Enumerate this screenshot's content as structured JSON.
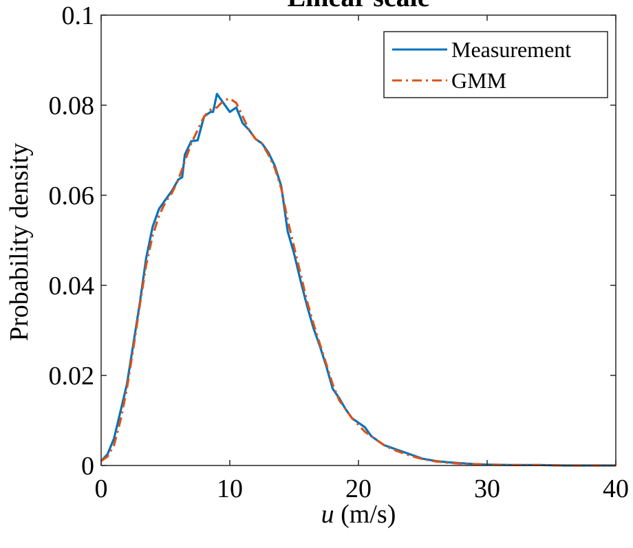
{
  "chart_data": {
    "type": "line",
    "title": "Linear scale",
    "xlabel_var": "u",
    "xlabel_unit": "(m/s)",
    "ylabel": "Probability density",
    "xlim": [
      0,
      40
    ],
    "ylim": [
      0,
      0.1
    ],
    "xticks": [
      0,
      10,
      20,
      30,
      40
    ],
    "yticks": [
      0,
      0.02,
      0.04,
      0.06,
      0.08,
      0.1
    ],
    "xtick_labels": [
      "0",
      "10",
      "20",
      "30",
      "40"
    ],
    "ytick_labels": [
      "0",
      "0.02",
      "0.04",
      "0.06",
      "0.08",
      "0.1"
    ],
    "grid": false,
    "legend_position": "top-right",
    "series": [
      {
        "name": "Measurement",
        "color": "#0072BD",
        "style": "solid",
        "x": [
          0,
          0.5,
          1,
          1.5,
          2,
          2.5,
          3,
          3.5,
          4,
          4.5,
          5,
          5.5,
          6,
          6.3,
          6.5,
          7,
          7.5,
          8,
          8.5,
          8.7,
          9,
          9.5,
          10,
          10.5,
          11,
          11.5,
          12,
          12.5,
          13,
          13.5,
          14,
          14.5,
          15,
          15.5,
          16,
          16.5,
          17,
          17.5,
          18,
          18.5,
          19,
          19.5,
          20,
          20.5,
          21,
          21.5,
          22,
          22.5,
          23,
          23.5,
          24,
          25,
          26,
          27,
          28,
          29,
          30,
          32,
          34,
          36,
          38,
          40
        ],
        "y": [
          0.001,
          0.0025,
          0.006,
          0.012,
          0.018,
          0.027,
          0.036,
          0.046,
          0.053,
          0.057,
          0.059,
          0.061,
          0.0635,
          0.064,
          0.069,
          0.072,
          0.0722,
          0.0775,
          0.0785,
          0.0785,
          0.0825,
          0.0805,
          0.0785,
          0.0795,
          0.076,
          0.0745,
          0.0725,
          0.0715,
          0.0695,
          0.0665,
          0.062,
          0.052,
          0.047,
          0.041,
          0.0355,
          0.0305,
          0.0265,
          0.022,
          0.017,
          0.015,
          0.0125,
          0.0105,
          0.0095,
          0.0085,
          0.0065,
          0.0055,
          0.0045,
          0.004,
          0.0035,
          0.003,
          0.0025,
          0.0015,
          0.001,
          0.0007,
          0.0005,
          0.0003,
          0.0002,
          0.0001,
          0.0001,
          0,
          0,
          0
        ]
      },
      {
        "name": "GMM",
        "color": "#D95319",
        "style": "dash-dot",
        "x": [
          0,
          0.5,
          1,
          1.5,
          2,
          2.5,
          3,
          3.5,
          4,
          4.5,
          5,
          5.5,
          6,
          6.5,
          7,
          7.5,
          8,
          8.5,
          9,
          9.5,
          10,
          10.5,
          11,
          11.5,
          12,
          12.5,
          13,
          13.5,
          14,
          14.5,
          15,
          15.5,
          16,
          16.5,
          17,
          17.5,
          18,
          18.5,
          19,
          19.5,
          20,
          20.5,
          21,
          21.5,
          22,
          22.5,
          23,
          23.5,
          24,
          25,
          26,
          27,
          28,
          29,
          30,
          32,
          34,
          36,
          38,
          40
        ],
        "y": [
          0.001,
          0.002,
          0.0045,
          0.01,
          0.017,
          0.026,
          0.0355,
          0.0445,
          0.051,
          0.0555,
          0.0585,
          0.0605,
          0.0635,
          0.0675,
          0.0715,
          0.0745,
          0.0775,
          0.079,
          0.0795,
          0.081,
          0.0815,
          0.0805,
          0.0775,
          0.0745,
          0.0725,
          0.0715,
          0.069,
          0.066,
          0.0615,
          0.0545,
          0.0485,
          0.0425,
          0.0365,
          0.0315,
          0.027,
          0.0225,
          0.018,
          0.0145,
          0.0125,
          0.0105,
          0.009,
          0.0075,
          0.0065,
          0.0055,
          0.0045,
          0.0038,
          0.0032,
          0.0027,
          0.0022,
          0.0014,
          0.0009,
          0.0006,
          0.0004,
          0.0003,
          0.0002,
          0.0001,
          0.0001,
          0,
          0,
          0
        ]
      }
    ]
  }
}
